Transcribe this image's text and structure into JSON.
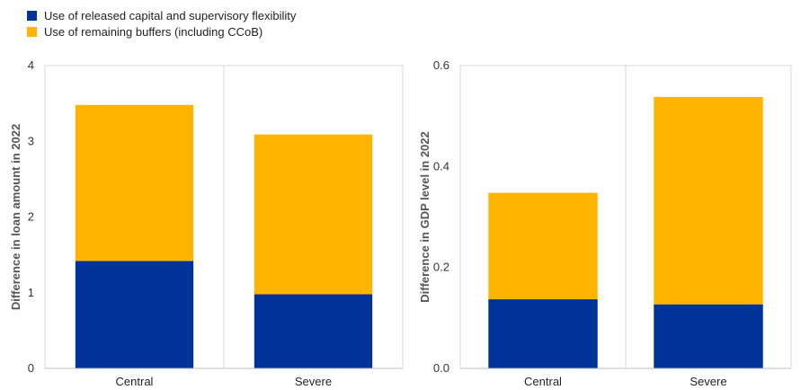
{
  "legend": {
    "items": [
      {
        "label": "Use of released capital and supervisory flexibility",
        "color": "#003299"
      },
      {
        "label": "Use of remaining buffers (including CCoB)",
        "color": "#FFB400"
      }
    ]
  },
  "chart_data": [
    {
      "type": "bar",
      "stacked": true,
      "categories": [
        "Central",
        "Severe"
      ],
      "series": [
        {
          "name": "Use of released capital and supervisory flexibility",
          "values": [
            1.42,
            0.98
          ],
          "color": "#003299"
        },
        {
          "name": "Use of remaining buffers (including CCoB)",
          "values": [
            2.06,
            2.11
          ],
          "color": "#FFB400"
        }
      ],
      "ylabel": "Difference in loan amount in 2022",
      "ylim": [
        0,
        4
      ],
      "yticks": [
        "0",
        "1",
        "2",
        "3",
        "4"
      ],
      "grid": "vertical"
    },
    {
      "type": "bar",
      "stacked": true,
      "categories": [
        "Central",
        "Severe"
      ],
      "series": [
        {
          "name": "Use of released capital and supervisory flexibility",
          "values": [
            0.137,
            0.127
          ],
          "color": "#003299"
        },
        {
          "name": "Use of remaining buffers (including CCoB)",
          "values": [
            0.211,
            0.411
          ],
          "color": "#FFB400"
        }
      ],
      "ylabel": "Difference in GDP level in 2022",
      "ylim": [
        0,
        0.6
      ],
      "yticks": [
        "0.0",
        "0.2",
        "0.4",
        "0.6"
      ],
      "grid": "vertical"
    }
  ]
}
